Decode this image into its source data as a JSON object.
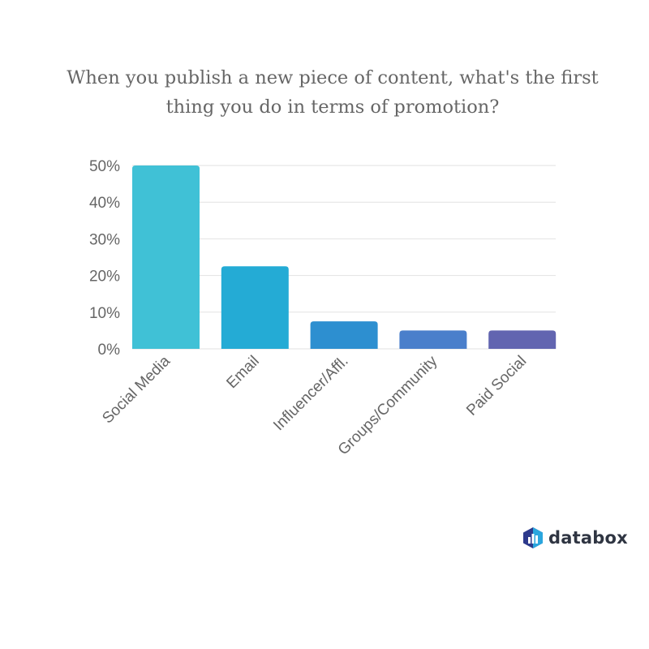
{
  "title_lines": [
    "When you publish a new piece of content, what's the first",
    "thing you do in terms of promotion?"
  ],
  "chart_data": {
    "type": "bar",
    "title": "When you publish a new piece of content, what's the first thing you do in terms of promotion?",
    "categories": [
      "Social Media",
      "Email",
      "Influencer/Affl.",
      "Groups/Community",
      "Paid Social"
    ],
    "values": [
      50,
      22.5,
      7.5,
      5,
      5
    ],
    "ylim": [
      0,
      50
    ],
    "yticks": [
      0,
      10,
      20,
      30,
      40,
      50
    ],
    "ytick_labels": [
      "0%",
      "10%",
      "20%",
      "30%",
      "40%",
      "50%"
    ],
    "grid": true,
    "bar_colors": [
      "#40c1d6",
      "#24abd5",
      "#2d8fd0",
      "#4a7fcb",
      "#6265b0"
    ]
  },
  "brand": {
    "name": "databox",
    "logo_icon": "databox-hexagon-icon"
  },
  "colors": {
    "grid": "#e2e2e2",
    "text": "#666666",
    "logo_dark": "#2d3a8c",
    "logo_light": "#2aa6de"
  }
}
